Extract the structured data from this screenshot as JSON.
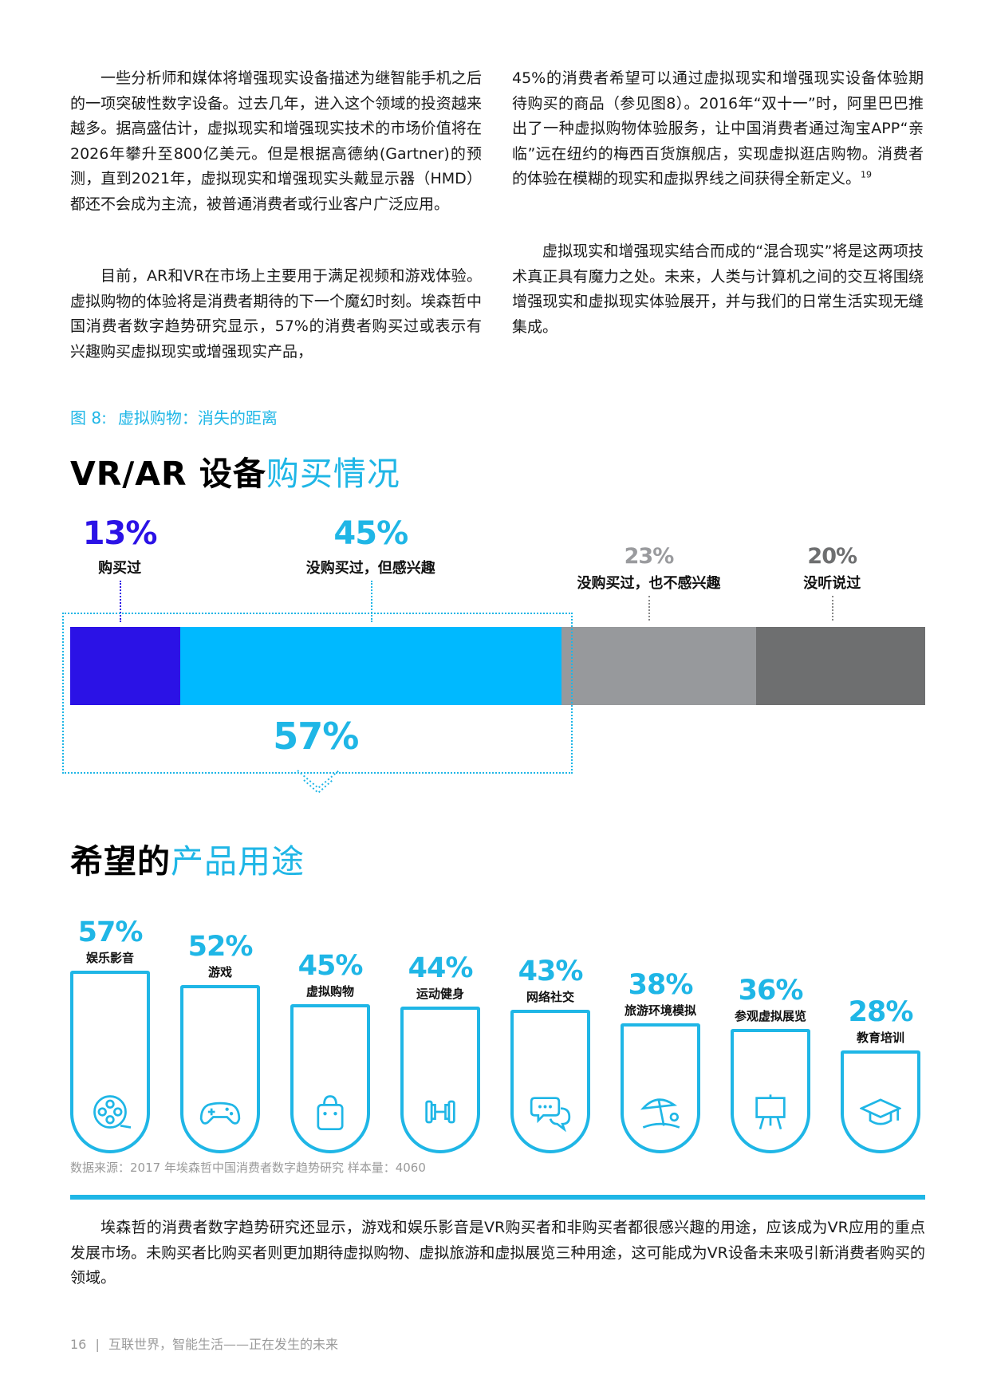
{
  "text": {
    "p1": "一些分析师和媒体将增强现实设备描述为继智能手机之后的一项突破性数字设备。过去几年，进入这个领域的投资越来越多。据高盛估计，虚拟现实和增强现实技术的市场价值将在2026年攀升至800亿美元。但是根据高德纳(Gartner)的预测，直到2021年，虚拟现实和增强现实头戴显示器（HMD）都还不会成为主流，被普通消费者或行业客户广泛应用。",
    "p2": "目前，AR和VR在市场上主要用于满足视频和游戏体验。虚拟购物的体验将是消费者期待的下一个魔幻时刻。埃森哲中国消费者数字趋势研究显示，57%的消费者购买过或表示有兴趣购买虚拟现实或增强现实产品，",
    "p3": "45%的消费者希望可以通过虚拟现实和增强现实设备体验期待购买的商品（参见图8）。2016年“双十一”时，阿里巴巴推出了一种虚拟购物体验服务，让中国消费者通过淘宝APP“亲临”远在纽约的梅西百货旗舰店，实现虚拟逛店购物。消费者的体验在模糊的现实和虚拟界线之间获得全新定义。",
    "p3_sup": "19",
    "p4": "虚拟现实和增强现实结合而成的“混合现实”将是这两项技术真正具有魔力之处。未来，人类与计算机之间的交互将围绕增强现实和虚拟现实体验展开，并与我们的日常生活实现无缝集成。",
    "p5": "埃森哲的消费者数字趋势研究还显示，游戏和娱乐影音是VR购买者和非购买者都很感兴趣的用途，应该成为VR应用的重点发展市场。未购买者比购买者则更加期待虚拟购物、虚拟旅游和虚拟展览三种用途，这可能成为VR设备未来吸引新消费者购买的领域。"
  },
  "figure": {
    "number": "图 8:",
    "caption": "虚拟购物：消失的距离"
  },
  "section1": {
    "title_bold": "VR/AR 设备",
    "title_accent": "购买情况"
  },
  "section2": {
    "title_bold": "希望的",
    "title_accent": "产品用途"
  },
  "chart_data": [
    {
      "type": "bar",
      "stacked": true,
      "orientation": "horizontal",
      "title": "VR/AR 设备购买情况",
      "series": [
        {
          "name": "购买过",
          "value": 13,
          "label": "13%",
          "color": "#2b12e6"
        },
        {
          "name": "没购买过，但感兴趣",
          "value": 45,
          "label": "45%",
          "color": "#00b9ff"
        },
        {
          "name": "没购买过，也不感兴趣",
          "value": 23,
          "label": "23%",
          "color": "#97999c"
        },
        {
          "name": "没听说过",
          "value": 20,
          "label": "20%",
          "color": "#6e6f70"
        }
      ],
      "annotation": {
        "value": 57,
        "label": "57%"
      }
    },
    {
      "type": "bar",
      "title": "希望的产品用途",
      "categories": [
        "娱乐影音",
        "游戏",
        "虚拟购物",
        "运动健身",
        "网络社交",
        "旅游环境模拟",
        "参观虚拟展览",
        "教育培训"
      ],
      "values": [
        57,
        52,
        45,
        44,
        43,
        38,
        36,
        28
      ],
      "labels": [
        "57%",
        "52%",
        "45%",
        "44%",
        "43%",
        "38%",
        "36%",
        "28%"
      ],
      "icons": [
        "film-reel-icon",
        "gamepad-icon",
        "shopping-bag-icon",
        "dumbbell-icon",
        "chat-bubbles-icon",
        "beach-umbrella-icon",
        "easel-icon",
        "graduation-cap-icon"
      ],
      "color": "#1fb6e6"
    }
  ],
  "source": "数据来源：2017 年埃森哲中国消费者数字趋势研究 样本量：4060",
  "footer": {
    "page": "16",
    "sep": "|",
    "title": "互联世界，智能生活——正在发生的未来"
  }
}
